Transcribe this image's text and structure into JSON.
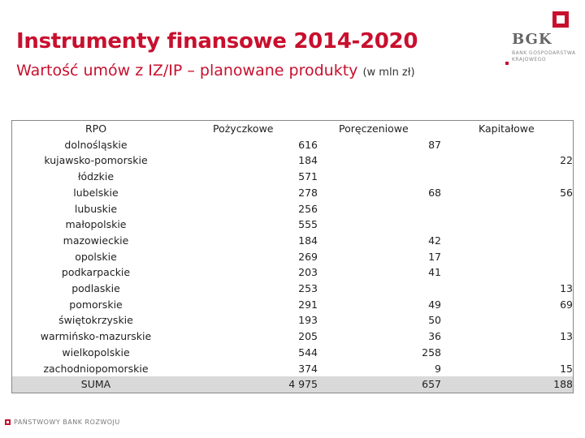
{
  "title": "Instrumenty finansowe 2014-2020",
  "subtitle": "Wartość umów z IZ/IP – planowane produkty",
  "subtitle_unit": "(w mln zł)",
  "logo": {
    "name": "BGK",
    "line1": "BANK GOSPODARSTWA",
    "line2": "KRAJOWEGO"
  },
  "footer": "PAŃSTWOWY BANK ROZWOJU",
  "colors": {
    "accent": "#c8102e",
    "sum_row": "#d9d9d9"
  },
  "table": {
    "headers": {
      "rpo": "RPO",
      "loan": "Pożyczkowe",
      "guar": "Poręczeniowe",
      "equity": "Kapitałowe"
    },
    "rows": [
      {
        "name": "dolnośląskie",
        "loan": "616",
        "guar": "87",
        "equity": ""
      },
      {
        "name": "kujawsko-pomorskie",
        "loan": "184",
        "guar": "",
        "equity": "22"
      },
      {
        "name": "łódzkie",
        "loan": "571",
        "guar": "",
        "equity": ""
      },
      {
        "name": "lubelskie",
        "loan": "278",
        "guar": "68",
        "equity": "56"
      },
      {
        "name": "lubuskie",
        "loan": "256",
        "guar": "",
        "equity": ""
      },
      {
        "name": "małopolskie",
        "loan": "555",
        "guar": "",
        "equity": ""
      },
      {
        "name": "mazowieckie",
        "loan": "184",
        "guar": "42",
        "equity": ""
      },
      {
        "name": "opolskie",
        "loan": "269",
        "guar": "17",
        "equity": ""
      },
      {
        "name": "podkarpackie",
        "loan": "203",
        "guar": "41",
        "equity": ""
      },
      {
        "name": "podlaskie",
        "loan": "253",
        "guar": "",
        "equity": "13"
      },
      {
        "name": "pomorskie",
        "loan": "291",
        "guar": "49",
        "equity": "69"
      },
      {
        "name": "świętokrzyskie",
        "loan": "193",
        "guar": "50",
        "equity": ""
      },
      {
        "name": "warmińsko-mazurskie",
        "loan": "205",
        "guar": "36",
        "equity": "13"
      },
      {
        "name": "wielkopolskie",
        "loan": "544",
        "guar": "258",
        "equity": ""
      },
      {
        "name": "zachodniopomorskie",
        "loan": "374",
        "guar": "9",
        "equity": "15"
      }
    ],
    "sum": {
      "name": "SUMA",
      "loan": "4 975",
      "guar": "657",
      "equity": "188"
    }
  }
}
